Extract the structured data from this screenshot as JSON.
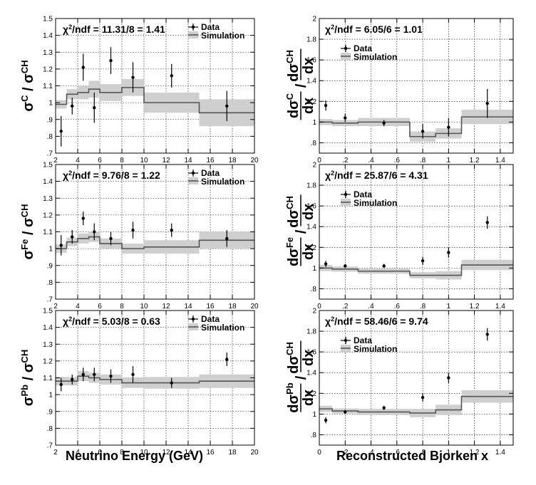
{
  "chart_data": [
    {
      "type": "scatter",
      "id": "C_energy",
      "column": 0,
      "row": 0,
      "xlim": [
        2,
        20
      ],
      "ylim": [
        0.7,
        1.5
      ],
      "xticks": [
        2,
        4,
        6,
        8,
        10,
        12,
        14,
        16,
        18,
        20
      ],
      "yticks": [
        0.7,
        0.8,
        0.9,
        1.0,
        1.1,
        1.2,
        1.3,
        1.4,
        1.5
      ],
      "ylabel": {
        "base": "σ",
        "num_sup": "C",
        "den_sup": "CH"
      },
      "stat_text": "χ2/ndf = 11.31/8 = 1.41",
      "legend": [
        "Data",
        "Simulation"
      ],
      "data": [
        {
          "x": 2.5,
          "y": 0.83,
          "err": 0.09
        },
        {
          "x": 3.5,
          "y": 0.98,
          "err": 0.05
        },
        {
          "x": 4.5,
          "y": 1.21,
          "err": 0.08
        },
        {
          "x": 5.5,
          "y": 0.97,
          "err": 0.09
        },
        {
          "x": 7.0,
          "y": 1.25,
          "err": 0.08
        },
        {
          "x": 9.0,
          "y": 1.15,
          "err": 0.09
        },
        {
          "x": 12.5,
          "y": 1.16,
          "err": 0.07
        },
        {
          "x": 17.5,
          "y": 0.98,
          "err": 0.09
        }
      ],
      "sim_bins": [
        {
          "x0": 2,
          "x1": 3,
          "y": 0.99,
          "band": 0.025
        },
        {
          "x0": 3,
          "x1": 4,
          "y": 1.05,
          "band": 0.03
        },
        {
          "x0": 4,
          "x1": 5,
          "y": 1.06,
          "band": 0.04
        },
        {
          "x0": 5,
          "x1": 6,
          "y": 1.08,
          "band": 0.05
        },
        {
          "x0": 6,
          "x1": 8,
          "y": 1.06,
          "band": 0.05
        },
        {
          "x0": 8,
          "x1": 10,
          "y": 1.09,
          "band": 0.05
        },
        {
          "x0": 10,
          "x1": 15,
          "y": 1.0,
          "band": 0.06
        },
        {
          "x0": 15,
          "x1": 20,
          "y": 0.94,
          "band": 0.08
        }
      ]
    },
    {
      "type": "scatter",
      "id": "C_x",
      "column": 1,
      "row": 0,
      "xlim": [
        0,
        1.5
      ],
      "ylim": [
        0.7,
        2.0
      ],
      "xticks": [
        0,
        0.2,
        0.4,
        0.6,
        0.8,
        1.0,
        1.2,
        1.4
      ],
      "yticks": [
        0.8,
        1.0,
        1.2,
        1.4,
        1.6,
        1.8,
        2.0
      ],
      "ylabel": {
        "base": "dσ",
        "num_sup": "C",
        "den_sup": "CH",
        "suffix": "dx"
      },
      "stat_text": "χ2/ndf = 6.05/6 = 1.01",
      "legend": [
        "Data",
        "Simulation"
      ],
      "data": [
        {
          "x": 0.05,
          "y": 1.16,
          "err": 0.05
        },
        {
          "x": 0.2,
          "y": 1.04,
          "err": 0.04
        },
        {
          "x": 0.5,
          "y": 0.99,
          "err": 0.03
        },
        {
          "x": 0.8,
          "y": 0.91,
          "err": 0.07
        },
        {
          "x": 1.0,
          "y": 0.95,
          "err": 0.09
        },
        {
          "x": 1.3,
          "y": 1.18,
          "err": 0.14
        }
      ],
      "sim_bins": [
        {
          "x0": 0,
          "x1": 0.1,
          "y": 1.0,
          "band": 0.03
        },
        {
          "x0": 0.1,
          "x1": 0.3,
          "y": 0.99,
          "band": 0.03
        },
        {
          "x0": 0.3,
          "x1": 0.7,
          "y": 1.0,
          "band": 0.04
        },
        {
          "x0": 0.7,
          "x1": 0.9,
          "y": 0.86,
          "band": 0.05
        },
        {
          "x0": 0.9,
          "x1": 1.1,
          "y": 0.89,
          "band": 0.05
        },
        {
          "x0": 1.1,
          "x1": 1.5,
          "y": 1.05,
          "band": 0.07
        }
      ]
    },
    {
      "type": "scatter",
      "id": "Fe_energy",
      "column": 0,
      "row": 1,
      "xlim": [
        2,
        20
      ],
      "ylim": [
        0.7,
        1.5
      ],
      "xticks": [
        2,
        4,
        6,
        8,
        10,
        12,
        14,
        16,
        18,
        20
      ],
      "yticks": [
        0.7,
        0.8,
        0.9,
        1.0,
        1.1,
        1.2,
        1.3,
        1.4,
        1.5
      ],
      "ylabel": {
        "base": "σ",
        "num_sup": "Fe",
        "den_sup": "CH"
      },
      "stat_text": "χ2/ndf = 9.76/8 = 1.22",
      "legend": [
        "Data",
        "Simulation"
      ],
      "data": [
        {
          "x": 2.5,
          "y": 1.02,
          "err": 0.06
        },
        {
          "x": 3.5,
          "y": 1.07,
          "err": 0.04
        },
        {
          "x": 4.5,
          "y": 1.18,
          "err": 0.04
        },
        {
          "x": 5.5,
          "y": 1.1,
          "err": 0.05
        },
        {
          "x": 7.0,
          "y": 1.06,
          "err": 0.04
        },
        {
          "x": 9.0,
          "y": 1.11,
          "err": 0.05
        },
        {
          "x": 12.5,
          "y": 1.11,
          "err": 0.04
        },
        {
          "x": 17.5,
          "y": 1.06,
          "err": 0.05
        }
      ],
      "sim_bins": [
        {
          "x0": 2,
          "x1": 3,
          "y": 1.0,
          "band": 0.025
        },
        {
          "x0": 3,
          "x1": 4,
          "y": 1.04,
          "band": 0.025
        },
        {
          "x0": 4,
          "x1": 5,
          "y": 1.06,
          "band": 0.03
        },
        {
          "x0": 5,
          "x1": 6,
          "y": 1.07,
          "band": 0.03
        },
        {
          "x0": 6,
          "x1": 8,
          "y": 1.03,
          "band": 0.03
        },
        {
          "x0": 8,
          "x1": 10,
          "y": 1.0,
          "band": 0.03
        },
        {
          "x0": 10,
          "x1": 15,
          "y": 1.01,
          "band": 0.04
        },
        {
          "x0": 15,
          "x1": 20,
          "y": 1.05,
          "band": 0.05
        }
      ]
    },
    {
      "type": "scatter",
      "id": "Fe_x",
      "column": 1,
      "row": 1,
      "xlim": [
        0,
        1.5
      ],
      "ylim": [
        0.7,
        2.0
      ],
      "xticks": [
        0,
        0.2,
        0.4,
        0.6,
        0.8,
        1.0,
        1.2,
        1.4
      ],
      "yticks": [
        0.8,
        1.0,
        1.2,
        1.4,
        1.6,
        1.8,
        2.0
      ],
      "ylabel": {
        "base": "dσ",
        "num_sup": "Fe",
        "den_sup": "CH",
        "suffix": "dx"
      },
      "stat_text": "χ2/ndf = 25.87/6 = 4.31",
      "legend": [
        "Data",
        "Simulation"
      ],
      "data": [
        {
          "x": 0.05,
          "y": 1.04,
          "err": 0.03
        },
        {
          "x": 0.2,
          "y": 1.02,
          "err": 0.02
        },
        {
          "x": 0.5,
          "y": 1.02,
          "err": 0.02
        },
        {
          "x": 0.8,
          "y": 1.07,
          "err": 0.04
        },
        {
          "x": 1.0,
          "y": 1.15,
          "err": 0.05
        },
        {
          "x": 1.3,
          "y": 1.44,
          "err": 0.06
        }
      ],
      "sim_bins": [
        {
          "x0": 0,
          "x1": 0.1,
          "y": 1.0,
          "band": 0.03
        },
        {
          "x0": 0.1,
          "x1": 0.3,
          "y": 0.99,
          "band": 0.025
        },
        {
          "x0": 0.3,
          "x1": 0.7,
          "y": 0.97,
          "band": 0.025
        },
        {
          "x0": 0.7,
          "x1": 0.9,
          "y": 0.93,
          "band": 0.03
        },
        {
          "x0": 0.9,
          "x1": 1.1,
          "y": 0.93,
          "band": 0.04
        },
        {
          "x0": 1.1,
          "x1": 1.5,
          "y": 1.03,
          "band": 0.05
        }
      ]
    },
    {
      "type": "scatter",
      "id": "Pb_energy",
      "column": 0,
      "row": 2,
      "xlim": [
        2,
        20
      ],
      "ylim": [
        0.7,
        1.5
      ],
      "xticks": [
        2,
        4,
        6,
        8,
        10,
        12,
        14,
        16,
        18,
        20
      ],
      "yticks": [
        0.7,
        0.8,
        0.9,
        1.0,
        1.1,
        1.2,
        1.3,
        1.4,
        1.5
      ],
      "ylabel": {
        "base": "σ",
        "num_sup": "Pb",
        "den_sup": "CH"
      },
      "stat_text": "χ2/ndf = 5.03/8 = 0.63",
      "legend": [
        "Data",
        "Simulation"
      ],
      "data": [
        {
          "x": 2.5,
          "y": 1.06,
          "err": 0.04
        },
        {
          "x": 3.5,
          "y": 1.09,
          "err": 0.03
        },
        {
          "x": 4.5,
          "y": 1.12,
          "err": 0.04
        },
        {
          "x": 5.5,
          "y": 1.12,
          "err": 0.04
        },
        {
          "x": 7.0,
          "y": 1.11,
          "err": 0.04
        },
        {
          "x": 9.0,
          "y": 1.12,
          "err": 0.05
        },
        {
          "x": 12.5,
          "y": 1.07,
          "err": 0.03
        },
        {
          "x": 17.5,
          "y": 1.21,
          "err": 0.04
        }
      ],
      "sim_bins": [
        {
          "x0": 2,
          "x1": 3,
          "y": 1.08,
          "band": 0.025
        },
        {
          "x0": 3,
          "x1": 4,
          "y": 1.08,
          "band": 0.025
        },
        {
          "x0": 4,
          "x1": 5,
          "y": 1.11,
          "band": 0.03
        },
        {
          "x0": 5,
          "x1": 6,
          "y": 1.1,
          "band": 0.03
        },
        {
          "x0": 6,
          "x1": 8,
          "y": 1.09,
          "band": 0.03
        },
        {
          "x0": 8,
          "x1": 10,
          "y": 1.07,
          "band": 0.03
        },
        {
          "x0": 10,
          "x1": 15,
          "y": 1.07,
          "band": 0.035
        },
        {
          "x0": 15,
          "x1": 20,
          "y": 1.08,
          "band": 0.04
        }
      ]
    },
    {
      "type": "scatter",
      "id": "Pb_x",
      "column": 1,
      "row": 2,
      "xlim": [
        0,
        1.5
      ],
      "ylim": [
        0.7,
        2.0
      ],
      "xticks": [
        0,
        0.2,
        0.4,
        0.6,
        0.8,
        1.0,
        1.2,
        1.4
      ],
      "yticks": [
        0.8,
        1.0,
        1.2,
        1.4,
        1.6,
        1.8,
        2.0
      ],
      "ylabel": {
        "base": "dσ",
        "num_sup": "Pb",
        "den_sup": "CH",
        "suffix": "dx"
      },
      "stat_text": "χ2/ndf = 58.46/6 = 9.74",
      "legend": [
        "Data",
        "Simulation"
      ],
      "data": [
        {
          "x": 0.05,
          "y": 0.94,
          "err": 0.03
        },
        {
          "x": 0.2,
          "y": 1.02,
          "err": 0.02
        },
        {
          "x": 0.5,
          "y": 1.06,
          "err": 0.02
        },
        {
          "x": 0.8,
          "y": 1.16,
          "err": 0.04
        },
        {
          "x": 1.0,
          "y": 1.35,
          "err": 0.05
        },
        {
          "x": 1.3,
          "y": 1.77,
          "err": 0.06
        }
      ],
      "sim_bins": [
        {
          "x0": 0,
          "x1": 0.1,
          "y": 1.05,
          "band": 0.03
        },
        {
          "x0": 0.1,
          "x1": 0.3,
          "y": 1.03,
          "band": 0.025
        },
        {
          "x0": 0.3,
          "x1": 0.7,
          "y": 1.02,
          "band": 0.03
        },
        {
          "x0": 0.7,
          "x1": 0.9,
          "y": 1.01,
          "band": 0.04
        },
        {
          "x0": 0.9,
          "x1": 1.1,
          "y": 1.04,
          "band": 0.05
        },
        {
          "x0": 1.1,
          "x1": 1.5,
          "y": 1.17,
          "band": 0.06
        }
      ]
    }
  ],
  "xaxis_titles": {
    "left": "Neutrino Energy (GeV)",
    "right": "Reconstructed Bjorken x"
  }
}
